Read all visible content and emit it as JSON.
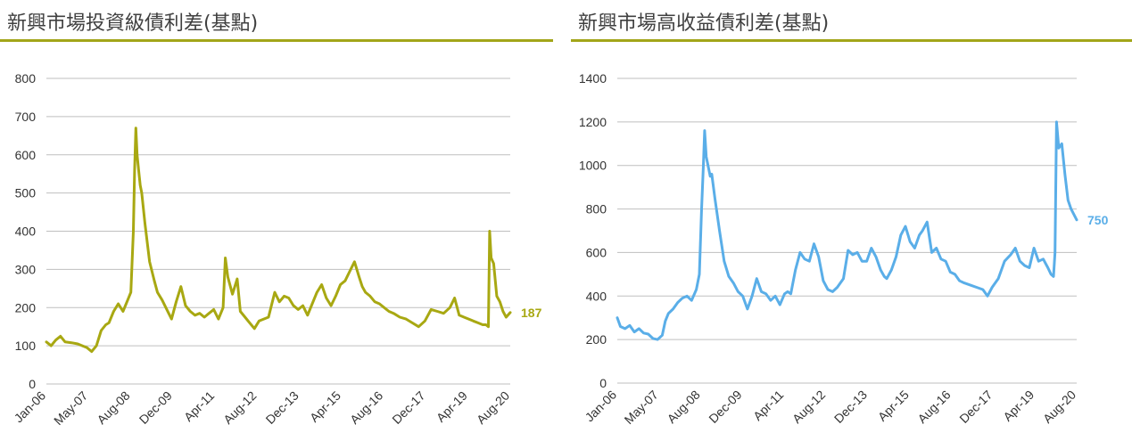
{
  "colors": {
    "rule": "#a2a519",
    "grid": "#bfbfbf"
  },
  "chart_data": [
    {
      "type": "line",
      "title": "新興市場投資級債利差(基點)",
      "color": "#a8a812",
      "ylim": [
        0,
        800
      ],
      "yticks": [
        "0",
        "100",
        "200",
        "300",
        "400",
        "500",
        "600",
        "700",
        "800"
      ],
      "xticks": [
        "Jan-06",
        "May-07",
        "Aug-08",
        "Dec-09",
        "Apr-11",
        "Aug-12",
        "Dec-13",
        "Apr-15",
        "Aug-16",
        "Dec-17",
        "Apr-19",
        "Aug-20"
      ],
      "x_domain": [
        2006.0,
        2020.83
      ],
      "end_label": "187",
      "series": [
        {
          "x": [
            2006.0,
            2006.15,
            2006.3,
            2006.45,
            2006.6,
            2006.8,
            2007.0,
            2007.15,
            2007.3,
            2007.45,
            2007.6,
            2007.75,
            2007.9,
            2008.0,
            2008.15,
            2008.3,
            2008.45,
            2008.6,
            2008.7,
            2008.78,
            2008.82,
            2008.86,
            2008.9,
            2008.95,
            2009.0,
            2009.05,
            2009.15,
            2009.3,
            2009.45,
            2009.55,
            2009.7,
            2009.85,
            2010.0,
            2010.15,
            2010.3,
            2010.45,
            2010.6,
            2010.75,
            2010.9,
            2011.05,
            2011.2,
            2011.35,
            2011.5,
            2011.65,
            2011.72,
            2011.8,
            2011.95,
            2012.1,
            2012.2,
            2012.35,
            2012.5,
            2012.65,
            2012.8,
            2012.95,
            2013.1,
            2013.3,
            2013.45,
            2013.6,
            2013.75,
            2013.9,
            2014.05,
            2014.2,
            2014.35,
            2014.5,
            2014.65,
            2014.8,
            2014.95,
            2015.1,
            2015.25,
            2015.4,
            2015.55,
            2015.7,
            2015.85,
            2016.0,
            2016.1,
            2016.2,
            2016.35,
            2016.5,
            2016.65,
            2016.8,
            2016.95,
            2017.1,
            2017.3,
            2017.5,
            2017.7,
            2017.9,
            2018.1,
            2018.3,
            2018.5,
            2018.7,
            2018.9,
            2019.05,
            2019.2,
            2019.35,
            2019.5,
            2019.65,
            2019.8,
            2019.95,
            2020.05,
            2020.13,
            2020.17,
            2020.22,
            2020.3,
            2020.4,
            2020.5,
            2020.6,
            2020.7,
            2020.83
          ],
          "y": [
            110,
            100,
            115,
            125,
            110,
            108,
            105,
            100,
            95,
            85,
            100,
            140,
            155,
            160,
            190,
            210,
            190,
            220,
            240,
            400,
            560,
            670,
            600,
            560,
            520,
            500,
            420,
            320,
            270,
            240,
            220,
            195,
            170,
            215,
            255,
            205,
            190,
            180,
            185,
            175,
            185,
            195,
            170,
            200,
            330,
            280,
            235,
            275,
            190,
            175,
            160,
            145,
            165,
            170,
            175,
            240,
            215,
            230,
            225,
            205,
            195,
            205,
            180,
            210,
            240,
            260,
            225,
            205,
            230,
            260,
            270,
            295,
            320,
            280,
            255,
            240,
            230,
            215,
            210,
            200,
            190,
            185,
            175,
            170,
            160,
            150,
            165,
            195,
            190,
            185,
            200,
            225,
            180,
            175,
            170,
            165,
            160,
            155,
            155,
            150,
            400,
            330,
            315,
            230,
            215,
            190,
            175,
            187
          ]
        }
      ]
    },
    {
      "type": "line",
      "title": "新興市場高收益債利差(基點)",
      "color": "#5aaee8",
      "ylim": [
        0,
        1400
      ],
      "yticks": [
        "0",
        "200",
        "400",
        "600",
        "800",
        "1000",
        "1200",
        "1400"
      ],
      "xticks": [
        "Jan-06",
        "May-07",
        "Aug-08",
        "Dec-09",
        "Apr-11",
        "Aug-12",
        "Dec-13",
        "Apr-15",
        "Aug-16",
        "Dec-17",
        "Apr-19",
        "Aug-20"
      ],
      "x_domain": [
        2006.0,
        2020.83
      ],
      "end_label": "750",
      "series": [
        {
          "x": [
            2006.0,
            2006.1,
            2006.25,
            2006.4,
            2006.55,
            2006.7,
            2006.85,
            2007.0,
            2007.15,
            2007.3,
            2007.45,
            2007.55,
            2007.65,
            2007.8,
            2007.95,
            2008.1,
            2008.25,
            2008.4,
            2008.55,
            2008.65,
            2008.72,
            2008.78,
            2008.82,
            2008.87,
            2008.93,
            2009.0,
            2009.05,
            2009.15,
            2009.3,
            2009.45,
            2009.6,
            2009.75,
            2009.9,
            2010.05,
            2010.2,
            2010.35,
            2010.5,
            2010.65,
            2010.8,
            2010.95,
            2011.1,
            2011.25,
            2011.4,
            2011.5,
            2011.6,
            2011.75,
            2011.9,
            2012.05,
            2012.2,
            2012.35,
            2012.5,
            2012.65,
            2012.8,
            2012.95,
            2013.1,
            2013.3,
            2013.45,
            2013.6,
            2013.75,
            2013.9,
            2014.05,
            2014.2,
            2014.35,
            2014.5,
            2014.62,
            2014.7,
            2014.85,
            2015.0,
            2015.15,
            2015.3,
            2015.45,
            2015.6,
            2015.75,
            2015.85,
            2016.0,
            2016.15,
            2016.3,
            2016.45,
            2016.6,
            2016.75,
            2016.9,
            2017.05,
            2017.2,
            2017.4,
            2017.6,
            2017.8,
            2017.95,
            2018.1,
            2018.3,
            2018.5,
            2018.7,
            2018.85,
            2019.0,
            2019.15,
            2019.3,
            2019.45,
            2019.6,
            2019.75,
            2019.9,
            2020.0,
            2020.08,
            2020.13,
            2020.18,
            2020.25,
            2020.35,
            2020.45,
            2020.55,
            2020.65,
            2020.83
          ],
          "y": [
            300,
            260,
            250,
            265,
            235,
            250,
            230,
            225,
            205,
            200,
            220,
            285,
            320,
            340,
            370,
            390,
            400,
            380,
            430,
            500,
            800,
            1000,
            1160,
            1040,
            1000,
            950,
            960,
            850,
            700,
            560,
            490,
            460,
            420,
            400,
            340,
            400,
            480,
            420,
            410,
            380,
            400,
            360,
            410,
            420,
            410,
            520,
            600,
            570,
            560,
            640,
            580,
            470,
            430,
            420,
            440,
            480,
            610,
            590,
            600,
            560,
            560,
            620,
            580,
            520,
            490,
            480,
            520,
            580,
            680,
            720,
            650,
            620,
            680,
            700,
            740,
            600,
            620,
            570,
            560,
            510,
            500,
            470,
            460,
            450,
            440,
            430,
            400,
            440,
            480,
            560,
            590,
            620,
            560,
            540,
            530,
            620,
            560,
            570,
            530,
            500,
            490,
            600,
            1200,
            1080,
            1100,
            960,
            840,
            800,
            750
          ]
        }
      ]
    }
  ]
}
